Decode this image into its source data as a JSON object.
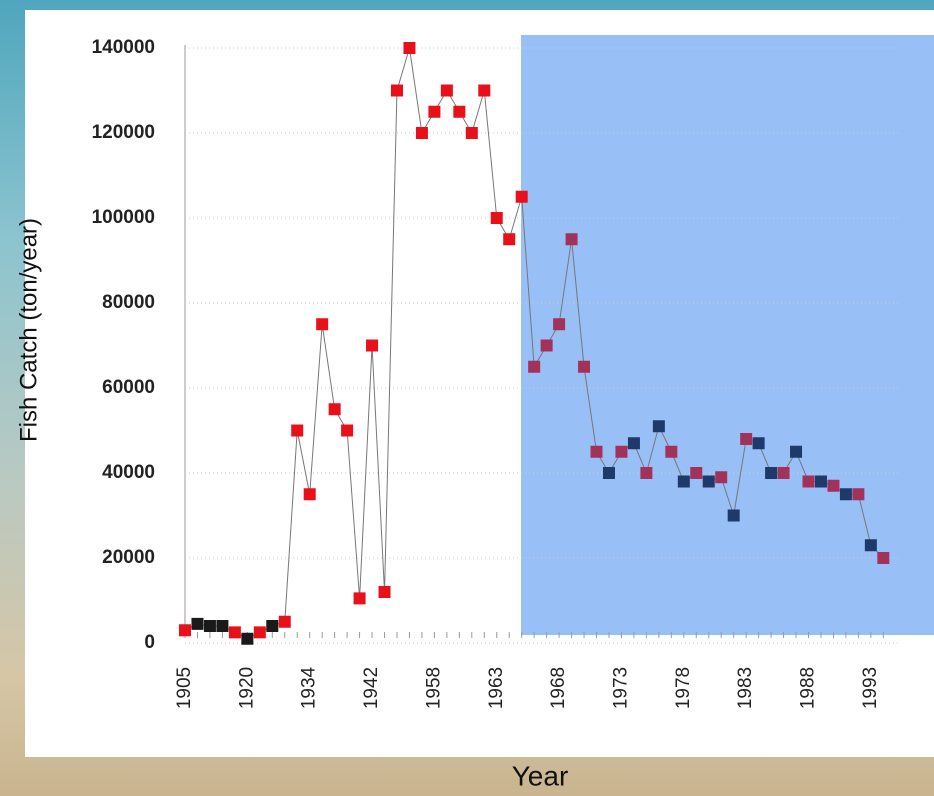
{
  "chart_data": {
    "type": "line",
    "ylabel": "Fish Catch (ton/year)",
    "xlabel": "Year",
    "categories": [
      "1905",
      null,
      null,
      null,
      null,
      "1920",
      null,
      null,
      null,
      null,
      "1934",
      null,
      null,
      null,
      null,
      "1942",
      null,
      null,
      null,
      null,
      "1958",
      null,
      null,
      null,
      null,
      "1963",
      null,
      null,
      null,
      null,
      "1968",
      null,
      null,
      null,
      null,
      "1973",
      null,
      null,
      null,
      null,
      "1978",
      null,
      null,
      null,
      null,
      "1983",
      null,
      null,
      null,
      null,
      "1988",
      null,
      null,
      null,
      null,
      "1993",
      null
    ],
    "values": [
      3000,
      4500,
      4000,
      4000,
      2500,
      1000,
      2500,
      4000,
      5000,
      50000,
      35000,
      75000,
      55000,
      50000,
      10500,
      70000,
      12000,
      130000,
      140000,
      120000,
      125000,
      130000,
      125000,
      120000,
      130000,
      100000,
      95000,
      105000,
      65000,
      70000,
      75000,
      95000,
      65000,
      45000,
      40000,
      45000,
      47000,
      40000,
      51000,
      45000,
      38000,
      40000,
      38000,
      39000,
      30000,
      48000,
      47000,
      40000,
      40000,
      45000,
      38000,
      38000,
      37000,
      35000,
      35000,
      23000,
      20000
    ],
    "point_colors": [
      "#e8111a",
      "#1a1a1a",
      "#1a1a1a",
      "#1a1a1a",
      "#e8111a",
      "#1a1a1a",
      "#e8111a",
      "#1a1a1a",
      "#e8111a",
      "#e8111a",
      "#e8111a",
      "#e8111a",
      "#e8111a",
      "#e8111a",
      "#e8111a",
      "#e8111a",
      "#e8111a",
      "#e8111a",
      "#e8111a",
      "#e8111a",
      "#e8111a",
      "#e8111a",
      "#e8111a",
      "#e8111a",
      "#e8111a",
      "#e8111a",
      "#e8111a",
      "#e8111a",
      "#a3325a",
      "#a3325a",
      "#a3325a",
      "#a3325a",
      "#a3325a",
      "#a3325a",
      "#1d3a6b",
      "#a3325a",
      "#1d3a6b",
      "#a3325a",
      "#1d3a6b",
      "#a3325a",
      "#1d3a6b",
      "#a3325a",
      "#1d3a6b",
      "#a3325a",
      "#1d3a6b",
      "#a3325a",
      "#1d3a6b",
      "#1d3a6b",
      "#a3325a",
      "#1d3a6b",
      "#a3325a",
      "#1d3a6b",
      "#a3325a",
      "#1d3a6b",
      "#a3325a",
      "#1d3a6b",
      "#a3325a"
    ],
    "line_color": "#777777",
    "ylim": [
      0,
      140000
    ],
    "yticks": [
      0,
      20000,
      40000,
      60000,
      80000,
      100000,
      120000,
      140000
    ],
    "grid": true
  }
}
